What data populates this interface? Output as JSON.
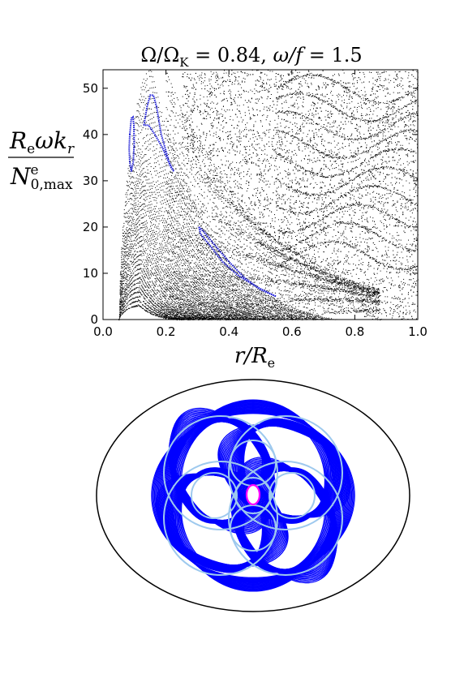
{
  "chart_data": [
    {
      "type": "scatter",
      "title": "Ω/Ω_K = 0.84, ω/f = 1.5",
      "title_parts": {
        "lhs": "Ω/Ω",
        "lhs_sub": "K",
        "eq1": " = 0.84, ",
        "omega_f": "ω/f",
        "eq2": " = 1.5"
      },
      "xlabel": "r/R_e",
      "xlabel_parts": {
        "main": "r/R",
        "sub": "e"
      },
      "ylabel": "R_e ω k_r / N^e_{0,max}",
      "ylabel_parts": {
        "num_R": "R",
        "num_R_sub": "e",
        "num_rest": "ωk",
        "num_k_sub": "r",
        "den_N": "N",
        "den_sup": "e",
        "den_sub": "0,max"
      },
      "xlim": [
        0.0,
        1.0
      ],
      "ylim": [
        0,
        54
      ],
      "xticks": [
        0.0,
        0.2,
        0.4,
        0.6,
        0.8,
        1.0
      ],
      "xtick_labels": [
        "0.0",
        "0.2",
        "0.4",
        "0.6",
        "0.8",
        "1.0"
      ],
      "yticks": [
        0,
        10,
        20,
        30,
        40,
        50
      ],
      "ytick_labels": [
        "0",
        "10",
        "20",
        "30",
        "40",
        "50"
      ],
      "grid": false,
      "colors": {
        "regular": "#000000",
        "highlight": "#1a1ad6"
      },
      "highlight_islands": [
        {
          "points": [
            [
              0.085,
              40
            ],
            [
              0.09,
              43.5
            ],
            [
              0.095,
              43.8
            ],
            [
              0.098,
              42
            ],
            [
              0.099,
              38
            ],
            [
              0.096,
              34
            ],
            [
              0.09,
              32
            ],
            [
              0.085,
              34
            ],
            [
              0.083,
              37
            ],
            [
              0.085,
              40
            ]
          ]
        },
        {
          "points": [
            [
              0.13,
              42
            ],
            [
              0.14,
              46
            ],
            [
              0.15,
              48.5
            ],
            [
              0.16,
              48.5
            ],
            [
              0.17,
              46
            ],
            [
              0.185,
              40
            ],
            [
              0.21,
              34
            ],
            [
              0.225,
              32
            ],
            [
              0.215,
              33
            ],
            [
              0.19,
              37
            ],
            [
              0.165,
              40
            ],
            [
              0.145,
              42
            ],
            [
              0.135,
              42
            ],
            [
              0.13,
              42
            ]
          ]
        },
        {
          "points": [
            [
              0.305,
              20
            ],
            [
              0.32,
              19
            ],
            [
              0.35,
              16.5
            ],
            [
              0.4,
              12.5
            ],
            [
              0.45,
              9
            ],
            [
              0.5,
              6.5
            ],
            [
              0.55,
              5
            ],
            [
              0.54,
              5.3
            ],
            [
              0.49,
              7
            ],
            [
              0.43,
              9.5
            ],
            [
              0.38,
              12.5
            ],
            [
              0.34,
              16
            ],
            [
              0.31,
              18.5
            ],
            [
              0.305,
              20
            ]
          ]
        }
      ]
    },
    {
      "type": "trajectory",
      "colors": {
        "orbit": "#0000ff",
        "caustic": "#9ec9ee",
        "outline": "#000000",
        "center": "#ff00ff"
      }
    }
  ]
}
